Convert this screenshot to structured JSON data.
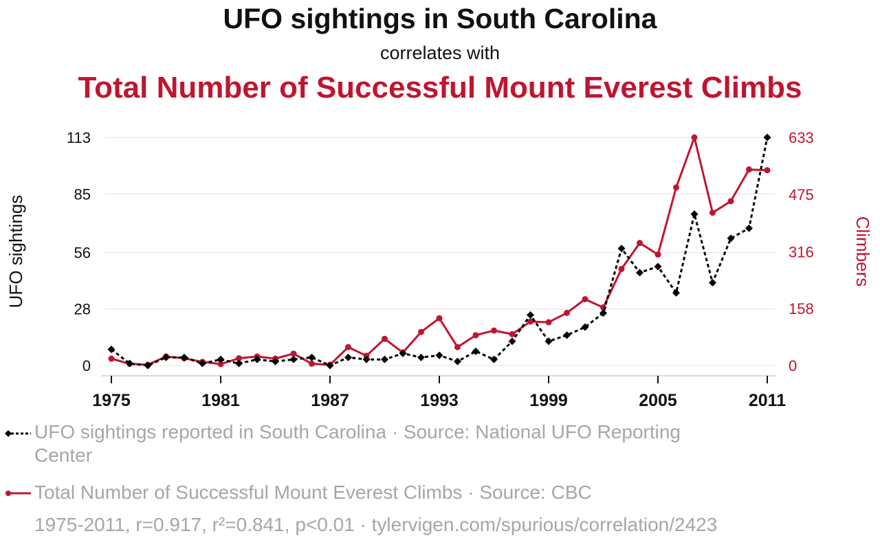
{
  "chart_data": {
    "type": "line",
    "title": "UFO sightings in South Carolina",
    "subtitle": "correlates with",
    "title2": "Total Number of Successful Mount Everest Climbs",
    "x": [
      1975,
      1976,
      1977,
      1978,
      1979,
      1980,
      1981,
      1982,
      1983,
      1984,
      1985,
      1986,
      1987,
      1988,
      1989,
      1990,
      1991,
      1992,
      1993,
      1994,
      1995,
      1996,
      1997,
      1998,
      1999,
      2000,
      2001,
      2002,
      2003,
      2004,
      2005,
      2006,
      2007,
      2008,
      2009,
      2010,
      2011
    ],
    "xticks": [
      1975,
      1981,
      1987,
      1993,
      1999,
      2005,
      2011
    ],
    "xlim": [
      1975,
      2011
    ],
    "series": [
      {
        "name": "UFO sightings reported in South Carolina",
        "axis": "left",
        "color": "#000000",
        "style": "dashed",
        "marker": "diamond",
        "values": [
          8,
          1,
          0,
          4,
          4,
          1,
          3,
          1,
          3,
          2,
          3,
          4,
          0,
          4,
          3,
          3,
          6,
          4,
          5,
          2,
          7,
          3,
          12,
          25,
          12,
          15,
          19,
          26,
          58,
          46,
          49,
          36,
          75,
          41,
          63,
          68,
          113
        ]
      },
      {
        "name": "Total Number of Successful Mount Everest Climbs",
        "axis": "right",
        "color": "#c0152f",
        "style": "solid",
        "marker": "circle",
        "values": [
          19,
          5,
          2,
          25,
          20,
          10,
          4,
          20,
          25,
          19,
          33,
          5,
          2,
          51,
          27,
          74,
          36,
          93,
          131,
          51,
          84,
          97,
          87,
          122,
          120,
          146,
          184,
          161,
          268,
          340,
          308,
          494,
          633,
          424,
          456,
          544,
          542
        ]
      }
    ],
    "yleft": {
      "label": "UFO sightings",
      "ticks": [
        0,
        28,
        56,
        85,
        113
      ],
      "ylim": [
        0,
        113
      ],
      "color": "#111111"
    },
    "yright": {
      "label": "Climbers",
      "ticks": [
        0,
        158,
        316,
        475,
        633
      ],
      "ylim": [
        0,
        633
      ],
      "color": "#c0152f"
    },
    "grid": true
  },
  "legend": {
    "items": [
      {
        "text_line1": "UFO sightings reported in South Carolina · Source: National UFO Reporting",
        "text_line2": "Center",
        "color": "#000000"
      },
      {
        "text_line1": "Total Number of Successful Mount Everest Climbs · Source: CBC",
        "color": "#c0152f"
      }
    ],
    "footer": "1975-2011, r=0.917, r²=0.841, p<0.01 · tylervigen.com/spurious/correlation/2423"
  }
}
